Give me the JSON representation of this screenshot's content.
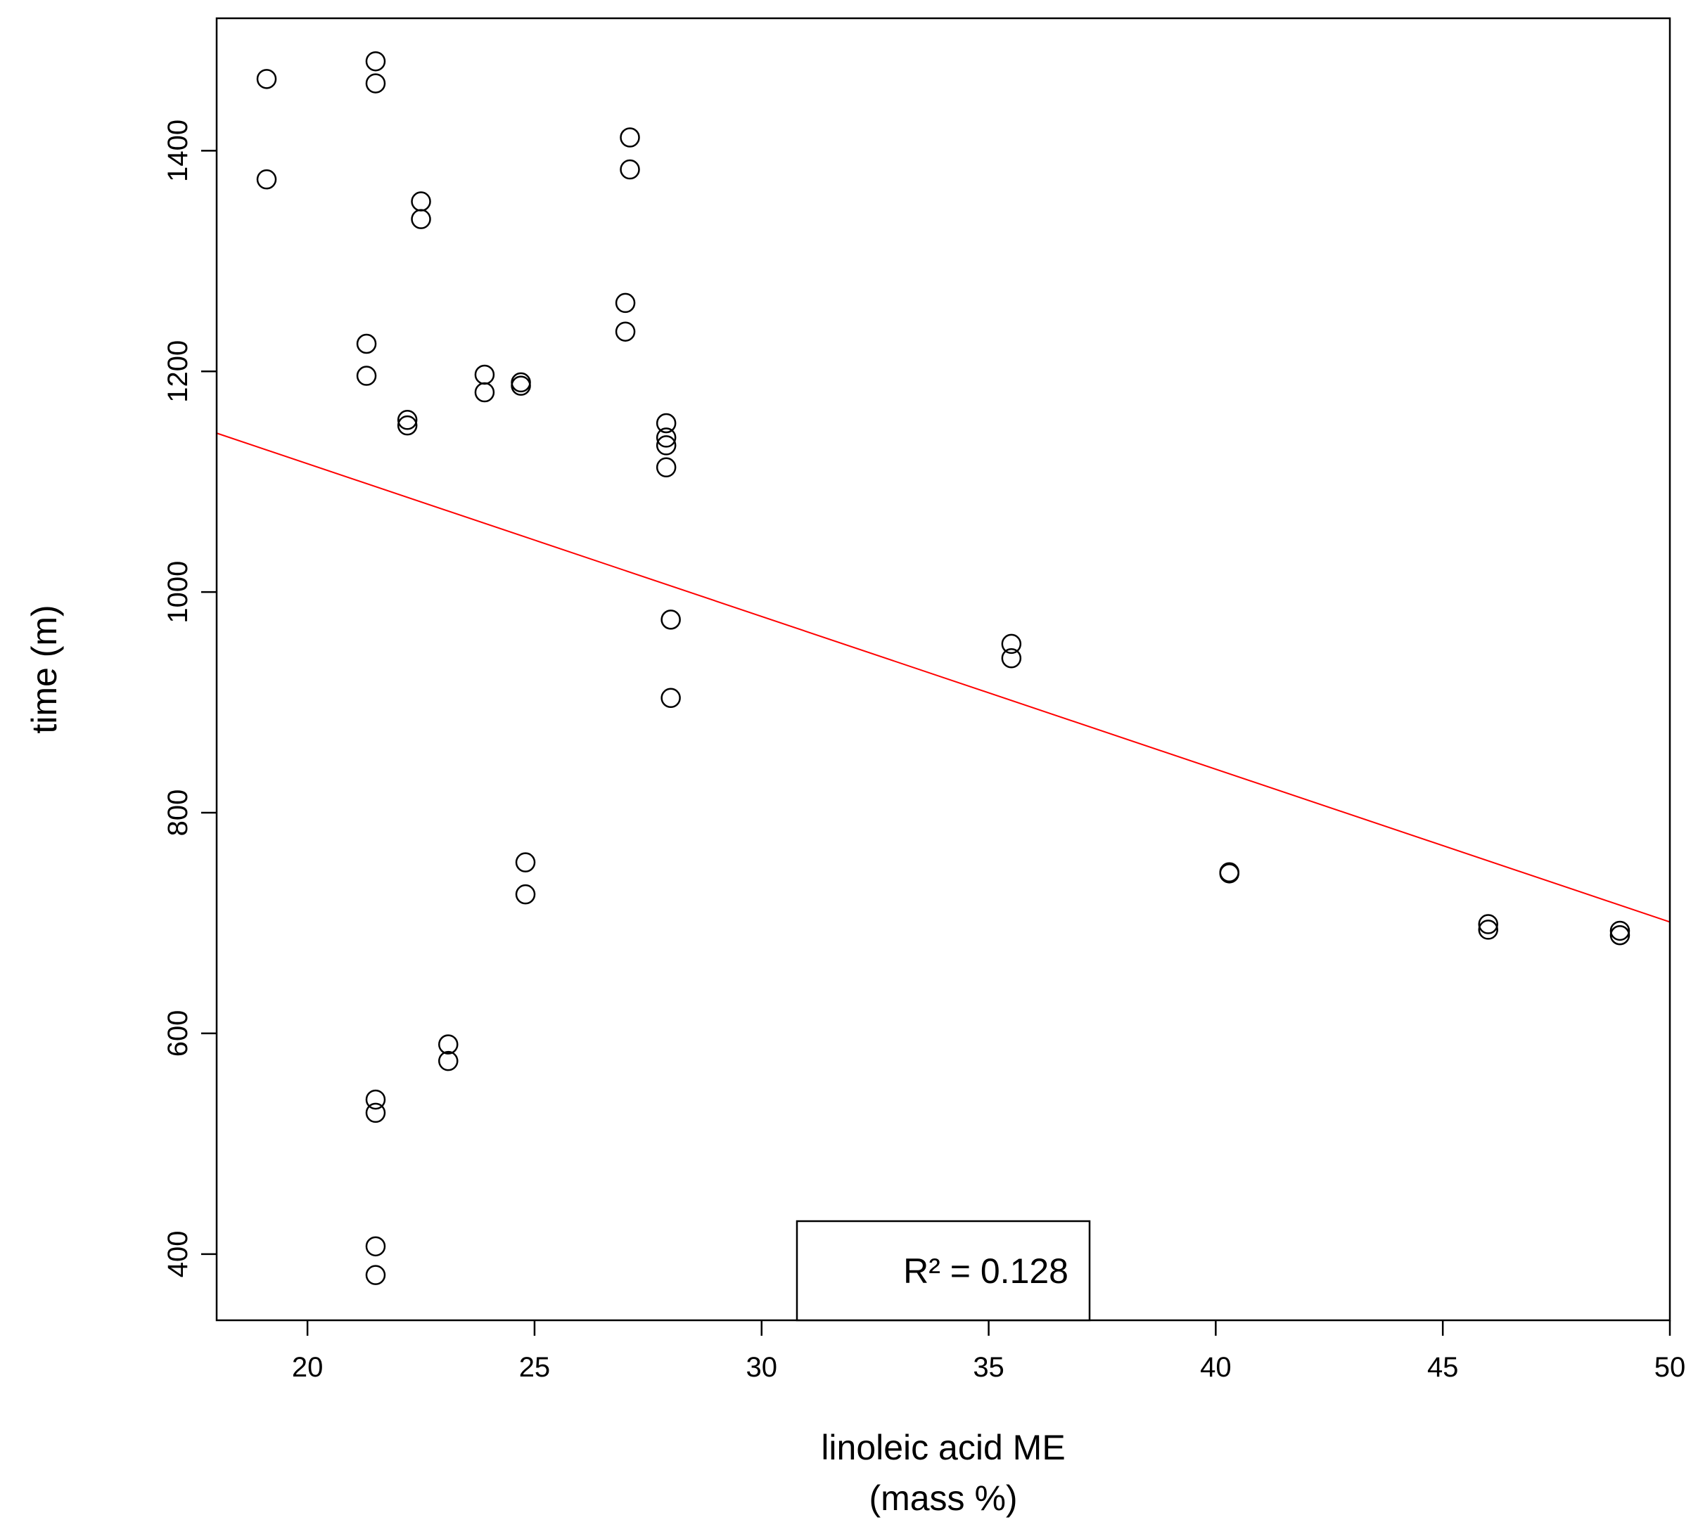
{
  "chart_data": {
    "type": "scatter",
    "title": "",
    "xlabel_lines": [
      "linoleic acid ME",
      "(mass %)"
    ],
    "ylabel": "time (m)",
    "xlim": [
      18,
      50
    ],
    "ylim": [
      340,
      1520
    ],
    "xticks": [
      20,
      25,
      30,
      35,
      40,
      45,
      50
    ],
    "yticks": [
      400,
      600,
      800,
      1000,
      1200,
      1400
    ],
    "grid": false,
    "annotation": "R² = 0.128",
    "colors": {
      "points": "#000000",
      "fit_line": "#ff0000",
      "axes": "#000000"
    },
    "fit_line": {
      "x": [
        18,
        50
      ],
      "y": [
        1144,
        701
      ]
    },
    "series": [
      {
        "marker": "open-circle",
        "points": [
          [
            19.1,
            1465
          ],
          [
            19.1,
            1374
          ],
          [
            21.5,
            1481
          ],
          [
            21.5,
            1461
          ],
          [
            21.3,
            1225
          ],
          [
            21.3,
            1196
          ],
          [
            22.2,
            1156
          ],
          [
            22.2,
            1151
          ],
          [
            22.5,
            1354
          ],
          [
            22.5,
            1338
          ],
          [
            23.9,
            1197
          ],
          [
            23.9,
            1181
          ],
          [
            24.7,
            1190
          ],
          [
            24.7,
            1187
          ],
          [
            27.0,
            1262
          ],
          [
            27.0,
            1236
          ],
          [
            27.1,
            1412
          ],
          [
            27.1,
            1383
          ],
          [
            27.9,
            1153
          ],
          [
            27.9,
            1140
          ],
          [
            27.9,
            1133
          ],
          [
            27.9,
            1113
          ],
          [
            28.0,
            975
          ],
          [
            28.0,
            904
          ],
          [
            35.5,
            953
          ],
          [
            35.5,
            940
          ],
          [
            40.3,
            746
          ],
          [
            40.3,
            745
          ],
          [
            46.0,
            699
          ],
          [
            46.0,
            694
          ],
          [
            48.9,
            693
          ],
          [
            48.9,
            689
          ],
          [
            24.8,
            755
          ],
          [
            24.8,
            726
          ],
          [
            23.1,
            590
          ],
          [
            23.1,
            575
          ],
          [
            21.5,
            540
          ],
          [
            21.5,
            528
          ],
          [
            21.5,
            407
          ],
          [
            21.5,
            381
          ]
        ]
      }
    ]
  }
}
